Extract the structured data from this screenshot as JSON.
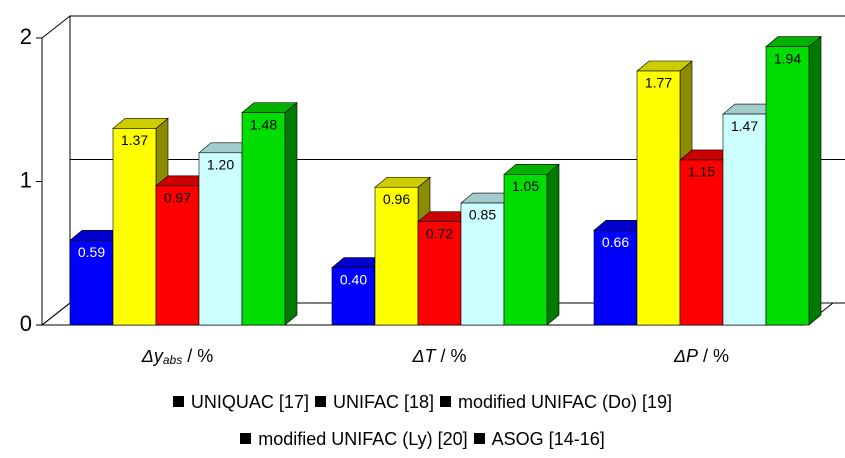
{
  "chart_data": {
    "type": "bar3d",
    "categories": [
      {
        "main": "Δy",
        "sub": "abs",
        "unit": " / %"
      },
      {
        "main": "ΔT",
        "unit": " / %"
      },
      {
        "main": "ΔP",
        "unit": " / %"
      }
    ],
    "ylim": [
      0,
      2
    ],
    "yticks": [
      0,
      1,
      2
    ],
    "grid": true,
    "series": [
      {
        "name": "UNIQUAC [17]",
        "color": "#0000ff",
        "values": [
          0.59,
          0.4,
          0.66
        ],
        "value_labels": [
          "0.59",
          "0.40",
          "0.66"
        ]
      },
      {
        "name": "UNIFAC [18]",
        "color": "#ffff00",
        "values": [
          1.37,
          0.96,
          1.77
        ],
        "value_labels": [
          "1.37",
          "0.96",
          "1.77"
        ]
      },
      {
        "name": "modified UNIFAC (Do) [19]",
        "color": "#ff0000",
        "values": [
          0.97,
          0.72,
          1.15
        ],
        "value_labels": [
          "0.97",
          "0.72",
          "1.15"
        ]
      },
      {
        "name": "modified UNIFAC (Ly) [20]",
        "color": "#ccffff",
        "values": [
          1.2,
          0.85,
          1.47
        ],
        "value_labels": [
          "1.20",
          "0.85",
          "1.47"
        ]
      },
      {
        "name": "ASOG [14-16]",
        "color": "#00dd00",
        "values": [
          1.48,
          1.05,
          1.94
        ],
        "value_labels": [
          "1.48",
          "1.05",
          "1.94"
        ]
      }
    ]
  }
}
